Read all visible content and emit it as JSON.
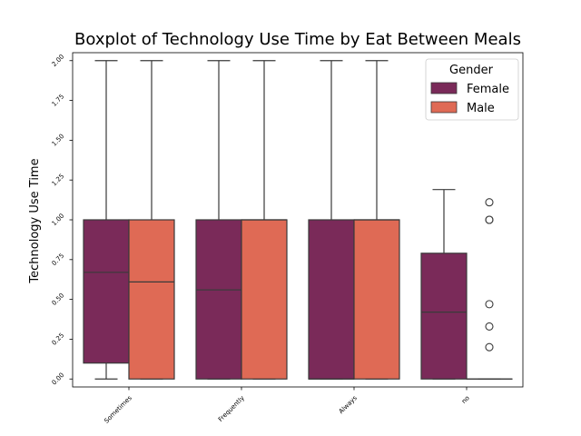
{
  "chart_data": {
    "type": "boxplot",
    "title": "Boxplot of Technology Use Time by Eat Between Meals",
    "xlabel": "",
    "ylabel": "Technology Use Time",
    "categories": [
      "Sometimes",
      "Frequently",
      "Always",
      "no"
    ],
    "ylim": [
      -0.05,
      2.05
    ],
    "yticks": [
      "0.00",
      "0.25",
      "0.50",
      "0.75",
      "1.00",
      "1.25",
      "1.50",
      "1.75",
      "2.00"
    ],
    "grid": false,
    "legend": {
      "title": "Gender",
      "position": "top-right"
    },
    "series": [
      {
        "name": "Female",
        "color": "#7a2a59",
        "boxes": [
          {
            "category": "Sometimes",
            "whislo": 0.0,
            "q1": 0.1,
            "median": 0.67,
            "q3": 1.0,
            "whishi": 2.0,
            "fliers": []
          },
          {
            "category": "Frequently",
            "whislo": 0.0,
            "q1": 0.0,
            "median": 0.56,
            "q3": 1.0,
            "whishi": 2.0,
            "fliers": []
          },
          {
            "category": "Always",
            "whislo": 0.0,
            "q1": 0.0,
            "median": 0.0,
            "q3": 1.0,
            "whishi": 2.0,
            "fliers": []
          },
          {
            "category": "no",
            "whislo": 0.0,
            "q1": 0.0,
            "median": 0.42,
            "q3": 0.79,
            "whishi": 1.19,
            "fliers": []
          }
        ]
      },
      {
        "name": "Male",
        "color": "#df6a55",
        "boxes": [
          {
            "category": "Sometimes",
            "whislo": 0.0,
            "q1": 0.0,
            "median": 0.61,
            "q3": 1.0,
            "whishi": 2.0,
            "fliers": []
          },
          {
            "category": "Frequently",
            "whislo": 0.0,
            "q1": 0.0,
            "median": 1.0,
            "q3": 1.0,
            "whishi": 2.0,
            "fliers": []
          },
          {
            "category": "Always",
            "whislo": 0.0,
            "q1": 0.0,
            "median": 1.0,
            "q3": 1.0,
            "whishi": 2.0,
            "fliers": []
          },
          {
            "category": "no",
            "whislo": 0.0,
            "q1": 0.0,
            "median": 0.0,
            "q3": 0.0,
            "whishi": 0.0,
            "fliers": [
              1.11,
              1.0,
              1.0,
              0.47,
              0.33,
              0.2
            ]
          }
        ]
      }
    ]
  }
}
